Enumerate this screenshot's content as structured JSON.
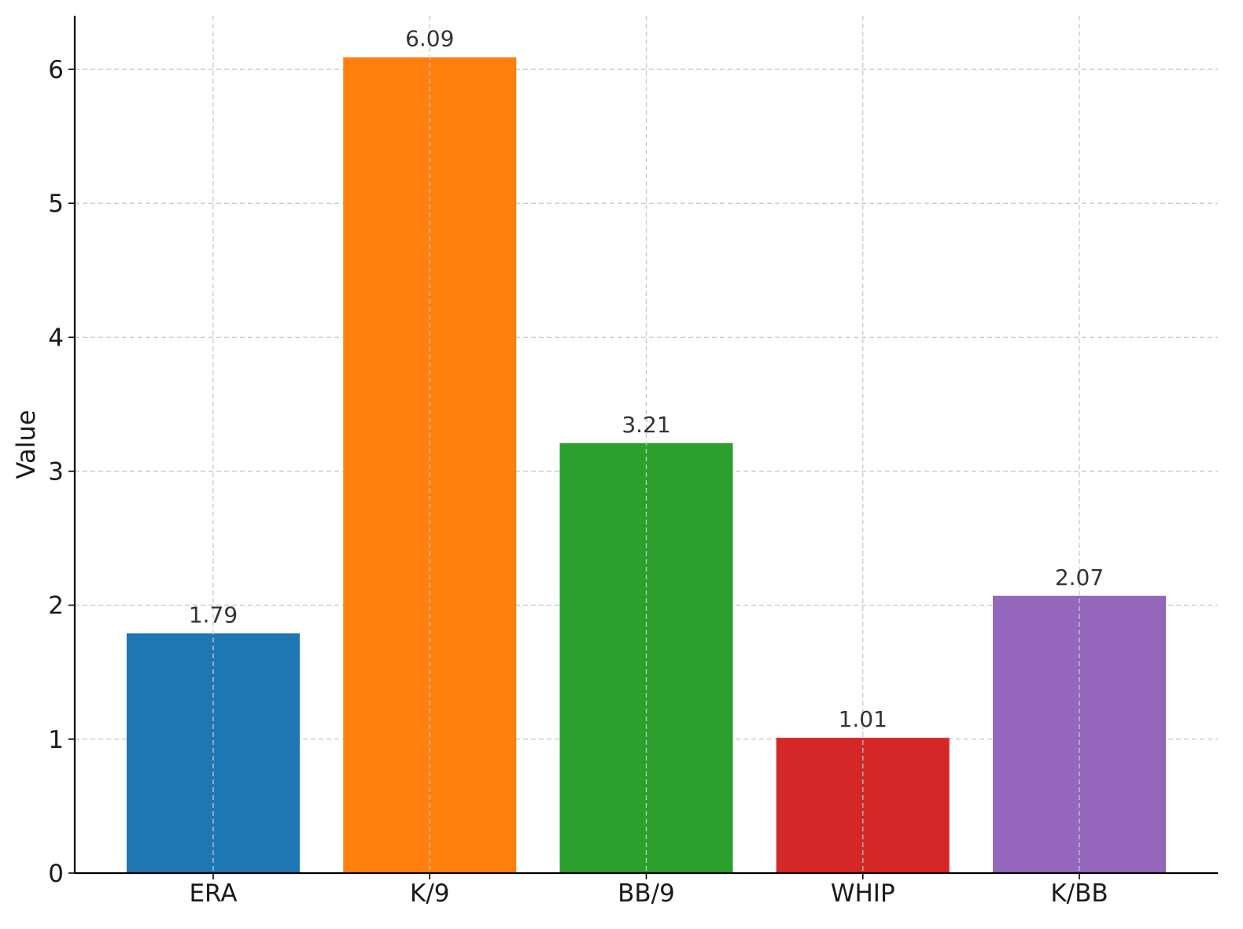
{
  "chart_data": {
    "type": "bar",
    "title": "",
    "xlabel": "",
    "ylabel": "Value",
    "categories": [
      "ERA",
      "K/9",
      "BB/9",
      "WHIP",
      "K/BB"
    ],
    "values": [
      1.79,
      6.09,
      3.21,
      1.01,
      2.07
    ],
    "data_labels": [
      "1.79",
      "6.09",
      "3.21",
      "1.01",
      "2.07"
    ],
    "colors": [
      "#1f77b4",
      "#ff7f0e",
      "#2ca02c",
      "#d62728",
      "#9467bd"
    ],
    "yticks": [
      0,
      1,
      2,
      3,
      4,
      5,
      6
    ],
    "ytick_labels": [
      "0",
      "1",
      "2",
      "3",
      "4",
      "5",
      "6"
    ],
    "ylim": [
      0,
      6.4
    ],
    "grid": true,
    "legend": "none"
  }
}
